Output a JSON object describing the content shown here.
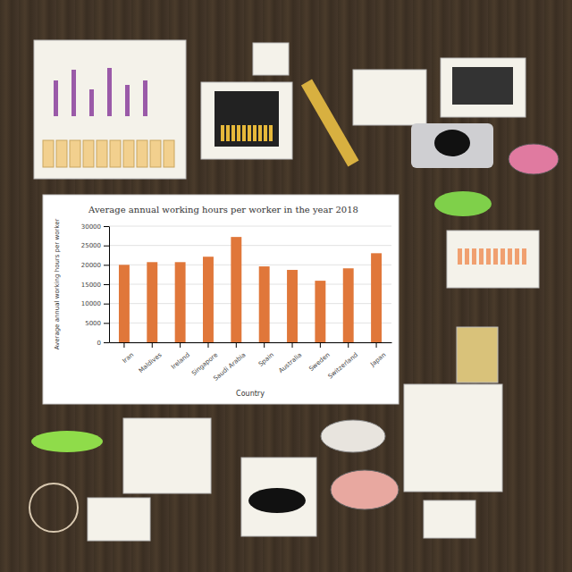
{
  "chart_data": {
    "type": "bar",
    "title": "Average annual working hours per worker in the year 2018",
    "x_label": "Country",
    "y_label": "Average annual working hours per worker",
    "categories": [
      "Iran",
      "Maldives",
      "Ireland",
      "Singapore",
      "Saudi Arabia",
      "Spain",
      "Australia",
      "Sweden",
      "Switzerland",
      "Japan"
    ],
    "values": [
      20000,
      20700,
      20700,
      22100,
      27200,
      19600,
      18700,
      15900,
      19100,
      23000
    ],
    "color": "#e0773a",
    "ylim": [
      0,
      30000
    ],
    "yticks": [
      0,
      5000,
      10000,
      15000,
      20000,
      25000,
      30000
    ],
    "grid": true
  }
}
